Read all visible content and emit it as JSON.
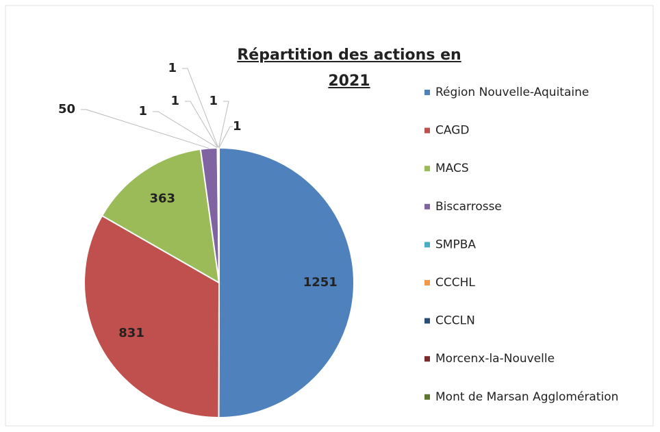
{
  "chart_data": {
    "type": "pie",
    "title": "Répartition des actions en 2021",
    "categories": [
      "Région Nouvelle-Aquitaine",
      "CAGD",
      "MACS",
      "Biscarrosse",
      "SMPBA",
      "CCCHL",
      "CCCLN",
      "Morcenx-la-Nouvelle",
      "Mont de Marsan Agglomération"
    ],
    "values": [
      1251,
      831,
      363,
      50,
      1,
      1,
      1,
      1,
      1
    ],
    "colors": [
      "#4f81bd",
      "#c0504d",
      "#9bbb59",
      "#8064a2",
      "#4bacc6",
      "#f79646",
      "#2c4d75",
      "#772c2a",
      "#5f7530"
    ],
    "legend": "right"
  }
}
